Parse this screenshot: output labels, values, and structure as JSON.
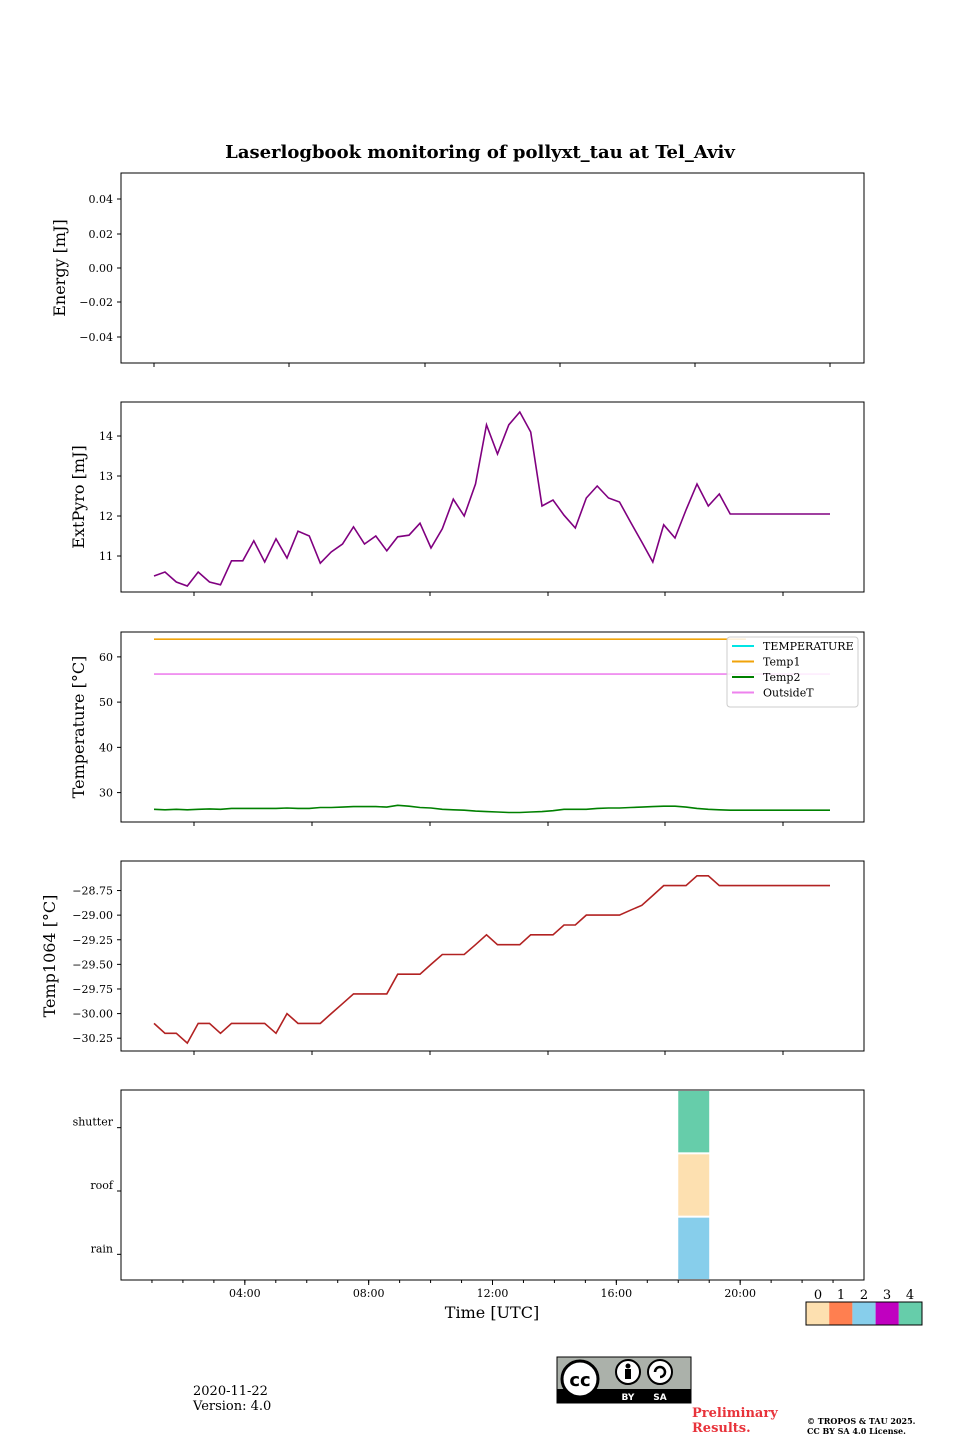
{
  "title": "Laserlogbook monitoring of pollyxt_tau at Tel_Aviv",
  "xlabel": "Time [UTC]",
  "footer": {
    "date": "2020-11-22",
    "version": "Version: 4.0",
    "preliminary_line1": "Preliminary",
    "preliminary_line2": "Results.",
    "copyright_line1": "© TROPOS & TAU 2025.",
    "copyright_line2": "CC BY SA 4.0 License.",
    "license_badge": {
      "cc": "cc",
      "by": "BY",
      "sa": "SA"
    }
  },
  "chart_data": [
    {
      "type": "line",
      "ylabel": "Energy [mJ]",
      "yticks": [
        "0.04",
        "0.02",
        "0.00",
        "−0.02",
        "−0.04"
      ],
      "ylim": [
        -0.055,
        0.055
      ],
      "series": []
    },
    {
      "type": "line",
      "ylabel": "ExtPyro [mJ]",
      "yticks": [
        "14",
        "13",
        "12",
        "11"
      ],
      "ylim": [
        10.1,
        14.85
      ],
      "color": "#800080",
      "x": [
        1.0,
        1.33,
        1.67,
        2.0,
        2.33,
        2.67,
        3.0,
        3.33,
        3.67,
        4.0,
        4.33,
        4.67,
        5.0,
        5.33,
        5.67,
        6.0,
        6.33,
        6.67,
        7.0,
        7.33,
        7.67,
        8.0,
        8.33,
        8.67,
        9.0,
        9.33,
        9.67,
        10.0,
        10.33,
        10.67,
        11.0,
        11.33,
        11.67,
        12.0,
        12.33,
        12.67,
        13.0,
        13.33,
        13.67,
        14.0,
        14.33,
        14.67,
        15.0,
        15.33,
        15.67,
        16.0,
        16.33,
        16.67,
        17.0,
        17.33,
        17.67,
        18.0,
        18.33,
        18.67,
        19.0,
        19.33,
        19.67,
        20.0,
        20.33,
        20.67,
        21.0,
        21.33
      ],
      "values": [
        10.5,
        10.6,
        10.35,
        10.25,
        10.6,
        10.35,
        10.28,
        10.88,
        10.88,
        11.38,
        10.85,
        11.43,
        10.95,
        11.62,
        11.5,
        10.82,
        11.1,
        11.3,
        11.73,
        11.3,
        11.5,
        11.13,
        11.48,
        11.52,
        11.82,
        11.2,
        11.68,
        12.42,
        12.0,
        12.8,
        14.28,
        13.55,
        14.28,
        14.6,
        14.1,
        12.25,
        12.4,
        12.02,
        11.7,
        12.45,
        12.75,
        12.45,
        12.35,
        11.85,
        11.35,
        10.85,
        11.78,
        11.45,
        12.15,
        12.8,
        12.25,
        12.55,
        12.05,
        12.05,
        12.05,
        12.05,
        12.05,
        12.05,
        12.05,
        12.05,
        12.05,
        12.05
      ]
    },
    {
      "type": "line",
      "ylabel": "Temperature [°C]",
      "yticks": [
        "60",
        "50",
        "40",
        "30"
      ],
      "ylim": [
        23.5,
        65.5
      ],
      "legend_position": "upper-right",
      "series": [
        {
          "name": "TEMPERATURE",
          "color": "#00e5e5",
          "x": [],
          "values": []
        },
        {
          "name": "Temp1",
          "color": "#f0a30a",
          "x": [
            1.0,
            18.8
          ],
          "values": [
            63.9,
            63.9
          ]
        },
        {
          "name": "Temp2",
          "color": "#008000",
          "x": [
            1.0,
            1.33,
            1.67,
            2.0,
            2.33,
            2.67,
            3.0,
            3.33,
            3.67,
            4.0,
            4.33,
            4.67,
            5.0,
            5.33,
            5.67,
            6.0,
            6.33,
            6.67,
            7.0,
            7.33,
            7.67,
            8.0,
            8.33,
            8.67,
            9.0,
            9.33,
            9.67,
            10.0,
            10.33,
            10.67,
            11.0,
            11.33,
            11.67,
            12.0,
            12.33,
            12.67,
            13.0,
            13.33,
            13.67,
            14.0,
            14.33,
            14.67,
            15.0,
            15.33,
            15.67,
            16.0,
            16.33,
            16.67,
            17.0,
            17.33,
            17.67,
            18.0,
            18.33,
            18.67,
            19.0,
            19.33,
            19.67,
            20.0,
            20.33,
            20.67,
            21.0,
            21.33
          ],
          "values": [
            26.3,
            26.2,
            26.3,
            26.2,
            26.3,
            26.4,
            26.3,
            26.5,
            26.5,
            26.5,
            26.5,
            26.5,
            26.6,
            26.5,
            26.5,
            26.7,
            26.7,
            26.8,
            26.9,
            26.9,
            26.9,
            26.8,
            27.2,
            27.0,
            26.7,
            26.6,
            26.3,
            26.2,
            26.1,
            25.9,
            25.8,
            25.7,
            25.6,
            25.6,
            25.7,
            25.8,
            26.0,
            26.3,
            26.3,
            26.3,
            26.5,
            26.6,
            26.6,
            26.7,
            26.8,
            26.9,
            27.0,
            27.0,
            26.8,
            26.5,
            26.3,
            26.2,
            26.1,
            26.1,
            26.1,
            26.1,
            26.1,
            26.1,
            26.1,
            26.1,
            26.1,
            26.1
          ]
        },
        {
          "name": "OutsideT",
          "color": "#ee82ee",
          "x": [
            1.0,
            21.33
          ],
          "values": [
            56.2,
            56.2
          ]
        }
      ]
    },
    {
      "type": "line",
      "ylabel": "Temp1064 [°C]",
      "yticks": [
        "−28.75",
        "−29.00",
        "−29.25",
        "−29.50",
        "−29.75",
        "−30.00",
        "−30.25"
      ],
      "ylim": [
        -30.38,
        -28.45
      ],
      "color": "#b22222",
      "x": [
        1.0,
        1.33,
        1.67,
        2.0,
        2.33,
        2.67,
        3.0,
        3.33,
        3.67,
        4.0,
        4.33,
        4.67,
        5.0,
        5.33,
        5.67,
        6.0,
        6.33,
        6.67,
        7.0,
        7.33,
        7.67,
        8.0,
        8.33,
        8.67,
        9.0,
        9.33,
        9.67,
        10.0,
        10.33,
        10.67,
        11.0,
        11.33,
        11.67,
        12.0,
        12.33,
        12.67,
        13.0,
        13.33,
        13.67,
        14.0,
        14.33,
        14.67,
        15.0,
        15.33,
        15.67,
        16.0,
        16.33,
        16.67,
        17.0,
        17.33,
        17.67,
        18.0,
        18.33,
        18.67,
        19.0,
        19.33,
        19.67,
        20.0,
        20.33,
        20.67,
        21.0,
        21.33
      ],
      "values": [
        -30.1,
        -30.2,
        -30.2,
        -30.3,
        -30.1,
        -30.1,
        -30.2,
        -30.1,
        -30.1,
        -30.1,
        -30.1,
        -30.2,
        -30.0,
        -30.1,
        -30.1,
        -30.1,
        -30.0,
        -29.9,
        -29.8,
        -29.8,
        -29.8,
        -29.8,
        -29.6,
        -29.6,
        -29.6,
        -29.5,
        -29.4,
        -29.4,
        -29.4,
        -29.3,
        -29.2,
        -29.3,
        -29.3,
        -29.3,
        -29.2,
        -29.2,
        -29.2,
        -29.1,
        -29.1,
        -29.0,
        -29.0,
        -29.0,
        -29.0,
        -28.95,
        -28.9,
        -28.8,
        -28.7,
        -28.7,
        -28.7,
        -28.6,
        -28.6,
        -28.7,
        -28.7,
        -28.7,
        -28.7,
        -28.7,
        -28.7,
        -28.7,
        -28.7,
        -28.7,
        -28.7,
        -28.7
      ]
    },
    {
      "type": "heatmap",
      "rows": [
        "shutter",
        "roof",
        "rain"
      ],
      "xlim": [
        0,
        24
      ],
      "xticks": [
        "04:00",
        "08:00",
        "12:00",
        "16:00",
        "20:00"
      ],
      "xtick_values": [
        4,
        8,
        12,
        16,
        20
      ],
      "cells": [
        {
          "row": "shutter",
          "x_start": 18.0,
          "x_end": 19.0,
          "value": 4
        },
        {
          "row": "roof",
          "x_start": 18.0,
          "x_end": 19.0,
          "value": 0
        },
        {
          "row": "rain",
          "x_start": 18.0,
          "x_end": 19.0,
          "value": 2
        }
      ],
      "colorbar": {
        "labels": [
          "0",
          "1",
          "2",
          "3",
          "4"
        ],
        "colors": [
          "#fde0b0",
          "#ff7f50",
          "#87ceeb",
          "#c000c0",
          "#66cdaa"
        ]
      }
    }
  ]
}
